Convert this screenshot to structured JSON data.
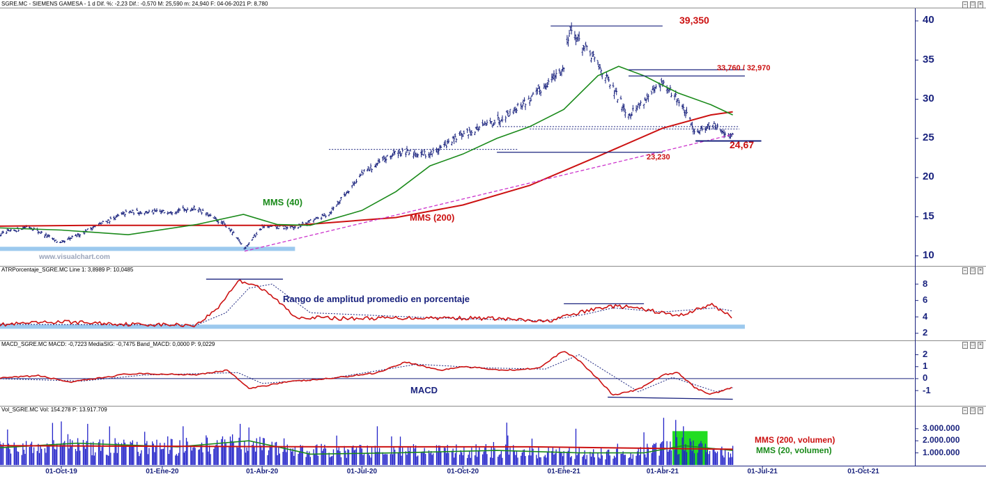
{
  "header": {
    "price_info": "SGRE.MC - SIEMENS GAMESA - 1 d  Dif. %: -2,23  Dif.: -0,570  M: 25,590  m: 24,940  F: 04-06-2021  P: 8,780",
    "atr_info": "ATRPorcentaje_SGRE.MC  Line 1: 3,8989  P: 10,0485",
    "macd_info": "MACD_SGRE.MC  MACD: -0,7223  MediaSIG: -0,7475  Band_MACD: 0,0000  P: 9,0229",
    "vol_info": "Vol_SGRE.MC  Vol: 154.278  P: 13.917.709"
  },
  "annotations": {
    "top": "39,350",
    "double_top": "33,760 / 32,970",
    "support": "24,67",
    "mid_support": "23,230",
    "mms40": "MMS (40)",
    "mms200": "MMS (200)",
    "watermark": "www.visualchart.com",
    "atr_title": "Rango de amplitud promedio en porcentaje",
    "macd_title": "MACD",
    "vol_mms200": "MMS (200, volumen)",
    "vol_mms20": "MMS (20, volumen)"
  },
  "colors": {
    "price": "#1a237e",
    "mms40": "#1a8a1a",
    "mms200": "#cc1111",
    "trendline": "#cc33cc",
    "highlight": "#9cc9ee",
    "vol_box": "#22dd22",
    "annotation_red": "#cc1111",
    "annotation_green": "#1a8a1a",
    "annotation_navy": "#1a237e"
  },
  "chart_data": [
    {
      "type": "ohlc",
      "panel": "price",
      "xlabel": "",
      "ylabel": "",
      "x_tick_labels": [
        "01-Oct-19",
        "01-Ene-20",
        "01-Abr-20",
        "01-Jul-20",
        "01-Oct-20",
        "01-Ene-21",
        "01-Abr-21",
        "01-Jul-21",
        "01-Oct-21"
      ],
      "y_ticks": [
        10,
        15,
        20,
        25,
        30,
        35,
        40
      ],
      "ylim": [
        8.9,
        41.6
      ],
      "grid": false,
      "series": [
        {
          "name": "SGRE.MC",
          "x": [
            "2019-08-01",
            "2019-09-01",
            "2019-10-01",
            "2019-11-01",
            "2019-12-01",
            "2020-01-01",
            "2020-02-01",
            "2020-03-01",
            "2020-03-16",
            "2020-04-01",
            "2020-05-01",
            "2020-06-01",
            "2020-07-01",
            "2020-08-01",
            "2020-09-01",
            "2020-10-01",
            "2020-11-01",
            "2020-12-01",
            "2021-01-01",
            "2021-01-06",
            "2021-02-01",
            "2021-03-01",
            "2021-04-01",
            "2021-04-15",
            "2021-05-01",
            "2021-05-15",
            "2021-06-04"
          ],
          "y": [
            12.5,
            13.8,
            11.6,
            13.8,
            15.6,
            15.6,
            16.1,
            13.7,
            11.0,
            13.7,
            13.6,
            15.4,
            20.5,
            23.2,
            23.0,
            25.5,
            27.3,
            30.0,
            34.0,
            39.0,
            34.5,
            28.0,
            32.0,
            30.0,
            25.8,
            26.8,
            25.2
          ]
        },
        {
          "name": "MMS (40)",
          "x": [
            "2019-08-01",
            "2019-10-01",
            "2019-12-01",
            "2020-02-01",
            "2020-03-15",
            "2020-04-15",
            "2020-05-15",
            "2020-07-01",
            "2020-08-01",
            "2020-09-01",
            "2020-10-01",
            "2020-11-01",
            "2020-12-01",
            "2021-01-01",
            "2021-02-01",
            "2021-02-20",
            "2021-03-15",
            "2021-04-15",
            "2021-05-15",
            "2021-06-04"
          ],
          "y": [
            13.6,
            13.3,
            12.7,
            14.0,
            15.3,
            14.0,
            13.9,
            15.8,
            18.2,
            21.5,
            23.0,
            25.0,
            26.5,
            28.7,
            33.0,
            34.2,
            33.0,
            30.8,
            29.3,
            28.0
          ]
        },
        {
          "name": "MMS (200)",
          "x": [
            "2019-08-01",
            "2019-11-01",
            "2020-02-01",
            "2020-05-01",
            "2020-08-01",
            "2020-10-01",
            "2020-12-01",
            "2021-02-01",
            "2021-04-01",
            "2021-05-15",
            "2021-06-04"
          ],
          "y": [
            13.8,
            13.9,
            13.9,
            13.9,
            14.9,
            16.5,
            19.0,
            22.7,
            26.3,
            28.0,
            28.4
          ]
        },
        {
          "name": "Trendline",
          "x": [
            "2020-03-16",
            "2021-06-04"
          ],
          "y": [
            10.6,
            25.5
          ]
        }
      ],
      "levels": [
        {
          "label": "39,350",
          "value": 39.35,
          "x_start": "2020-12-20",
          "x_end": "2021-04-01"
        },
        {
          "label": "33,760",
          "value": 33.76,
          "x_start": "2021-03-01",
          "x_end": "2021-06-15"
        },
        {
          "label": "32,970",
          "value": 32.97,
          "x_start": "2021-03-01",
          "x_end": "2021-06-15"
        },
        {
          "label": "24,67",
          "value": 24.67,
          "x_start": "2021-05-01",
          "x_end": "2021-06-30"
        },
        {
          "label": "23,230",
          "value": 23.23,
          "x_start": "2020-11-01",
          "x_end": "2021-04-01"
        }
      ],
      "dashed_levels": [
        {
          "value": 26.5,
          "x_start": "2020-11-01",
          "x_end": "2021-06-10"
        },
        {
          "value": 26.2,
          "x_start": "2020-12-01",
          "x_end": "2021-06-10"
        },
        {
          "value": 23.6,
          "x_start": "2020-06-01",
          "x_end": "2020-11-20"
        }
      ],
      "highlight_band": {
        "value": 10.9,
        "x_start": "2019-08-01",
        "x_end": "2020-05-01"
      }
    },
    {
      "type": "line",
      "panel": "atr_percent",
      "ylim": [
        1.3,
        9.2
      ],
      "y_ticks": [
        2,
        4,
        6,
        8
      ],
      "series": [
        {
          "name": "ATR %",
          "x": [
            "2019-08-01",
            "2019-10-01",
            "2019-12-01",
            "2020-02-01",
            "2020-02-20",
            "2020-03-10",
            "2020-03-25",
            "2020-04-15",
            "2020-05-01",
            "2020-06-15",
            "2020-09-01",
            "2020-11-01",
            "2020-12-15",
            "2021-01-15",
            "2021-02-10",
            "2021-03-01",
            "2021-04-01",
            "2021-04-15",
            "2021-05-15",
            "2021-06-04"
          ],
          "y": [
            3.0,
            3.4,
            3.1,
            3.0,
            5.0,
            8.4,
            8.0,
            6.0,
            4.0,
            3.8,
            3.9,
            3.8,
            3.4,
            4.5,
            5.3,
            5.2,
            4.5,
            4.1,
            5.5,
            4.0
          ]
        },
        {
          "name": "Signal",
          "x": [
            "2019-08-01",
            "2020-02-01",
            "2020-02-28",
            "2020-03-20",
            "2020-04-10",
            "2020-05-15",
            "2020-09-01",
            "2020-12-15",
            "2021-01-20",
            "2021-02-15",
            "2021-04-01",
            "2021-05-20",
            "2021-06-04"
          ],
          "y": [
            3.1,
            3.0,
            4.5,
            7.5,
            8.0,
            4.5,
            3.9,
            3.5,
            4.3,
            5.1,
            4.6,
            5.1,
            4.7
          ]
        }
      ],
      "levels": [
        {
          "value": 8.6,
          "x_start": "2020-02-10",
          "x_end": "2020-04-20"
        },
        {
          "value": 5.6,
          "x_start": "2021-01-01",
          "x_end": "2021-03-15"
        }
      ],
      "highlight_band": {
        "value": 2.8,
        "x_start": "2019-08-01",
        "x_end": "2021-06-15"
      }
    },
    {
      "type": "line",
      "panel": "macd",
      "ylim": [
        -2.1,
        2.5
      ],
      "y_ticks": [
        -1,
        0,
        1,
        2
      ],
      "series": [
        {
          "name": "MACD",
          "x": [
            "2019-08-01",
            "2019-09-10",
            "2019-10-10",
            "2019-12-01",
            "2020-02-01",
            "2020-03-01",
            "2020-03-20",
            "2020-04-20",
            "2020-06-01",
            "2020-07-15",
            "2020-08-10",
            "2020-09-10",
            "2020-10-01",
            "2020-11-10",
            "2020-12-10",
            "2021-01-01",
            "2021-01-15",
            "2021-02-01",
            "2021-02-15",
            "2021-03-10",
            "2021-04-01",
            "2021-04-15",
            "2021-05-01",
            "2021-05-15",
            "2021-06-04"
          ],
          "y": [
            0.0,
            0.25,
            -0.3,
            0.4,
            0.35,
            0.7,
            -0.85,
            -0.3,
            0.0,
            0.5,
            1.4,
            0.7,
            1.0,
            0.7,
            0.9,
            2.35,
            1.5,
            0.0,
            -1.4,
            -0.9,
            0.3,
            0.5,
            -0.8,
            -1.3,
            -0.72
          ]
        },
        {
          "name": "MediaSIG",
          "x": [
            "2019-08-01",
            "2019-10-20",
            "2019-12-15",
            "2020-03-10",
            "2020-04-01",
            "2020-06-01",
            "2020-08-20",
            "2020-10-20",
            "2020-12-15",
            "2021-01-15",
            "2021-02-10",
            "2021-03-10",
            "2021-04-10",
            "2021-05-20",
            "2021-06-04"
          ],
          "y": [
            0.0,
            -0.2,
            0.3,
            0.5,
            -0.4,
            0.0,
            1.2,
            0.9,
            0.8,
            2.0,
            0.5,
            -1.1,
            0.1,
            -1.1,
            -0.75
          ]
        }
      ],
      "levels": [
        {
          "value": -1.55,
          "x_start": "2021-02-10",
          "x_end": "2021-06-04"
        }
      ]
    },
    {
      "type": "bar",
      "panel": "volume",
      "ylim": [
        0,
        4200000
      ],
      "y_ticks": [
        1000000,
        2000000,
        3000000
      ],
      "y_tick_labels": [
        "1.000.000",
        "2.000.000",
        "3.000.000"
      ],
      "approx_volume_envelope": {
        "x": [
          "2019-08-01",
          "2019-10-01",
          "2020-01-01",
          "2020-03-15",
          "2020-05-01",
          "2020-08-01",
          "2020-11-01",
          "2021-01-01",
          "2021-03-01",
          "2021-04-15",
          "2021-06-04"
        ],
        "y": [
          1500000,
          1700000,
          1600000,
          2000000,
          1300000,
          1200000,
          1300000,
          1100000,
          1000000,
          1800000,
          1200000
        ]
      },
      "peaks": {
        "x": [
          "2019-10-01",
          "2019-10-25",
          "2020-01-05",
          "2020-01-20",
          "2020-03-12",
          "2020-03-20",
          "2020-07-15",
          "2020-09-20",
          "2020-11-10",
          "2021-01-12",
          "2021-03-15",
          "2021-04-02",
          "2021-04-20"
        ],
        "y": [
          3600000,
          3400000,
          3300000,
          3200000,
          3400000,
          3100000,
          3200000,
          3200000,
          3500000,
          3000000,
          2700000,
          3900000,
          3200000
        ]
      },
      "series": [
        {
          "name": "MMS (200, volumen)",
          "x": [
            "2019-08-01",
            "2020-01-01",
            "2020-06-01",
            "2020-12-01",
            "2021-06-04"
          ],
          "y": [
            1600000,
            1550000,
            1500000,
            1500000,
            1300000
          ]
        },
        {
          "name": "MMS (20, volumen)",
          "x": [
            "2019-08-01",
            "2019-10-15",
            "2020-01-15",
            "2020-03-20",
            "2020-04-20",
            "2020-05-15",
            "2020-08-01",
            "2020-11-01",
            "2021-01-15",
            "2021-03-15",
            "2021-04-20",
            "2021-06-04"
          ],
          "y": [
            1400000,
            1800000,
            1500000,
            2000000,
            1400000,
            900000,
            1000000,
            1200000,
            1000000,
            1000000,
            1600000,
            1200000
          ]
        }
      ],
      "highlight_box": {
        "x_start": "2021-04-10",
        "x_end": "2021-05-12",
        "y_top": 2800000
      }
    }
  ]
}
